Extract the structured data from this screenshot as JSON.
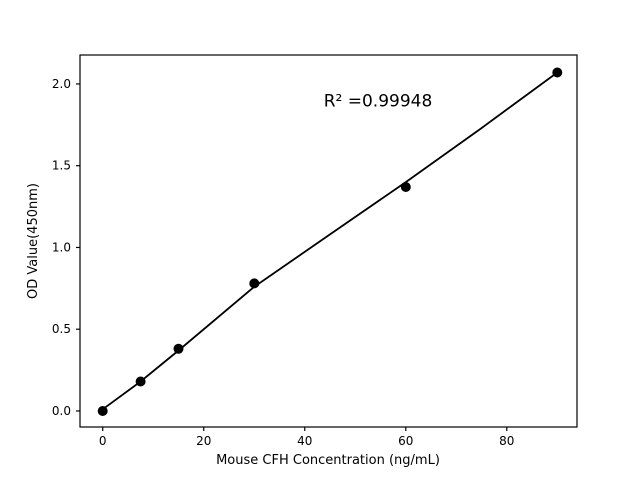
{
  "figure": {
    "background": "#ffffff",
    "frame_color": "#000000"
  },
  "chart_data": {
    "type": "scatter",
    "title": "",
    "xlabel": "Mouse CFH Concentration (ng/mL)",
    "ylabel": "OD Value(450nm)",
    "x": [
      0,
      7.5,
      15,
      30,
      60,
      90
    ],
    "y": [
      0.0,
      0.18,
      0.38,
      0.78,
      1.37,
      2.07
    ],
    "series": [
      {
        "name": "standard-curve-points",
        "points": [
          [
            0,
            0.0
          ],
          [
            7.5,
            0.18
          ],
          [
            15,
            0.38
          ],
          [
            30,
            0.78
          ],
          [
            60,
            1.37
          ],
          [
            90,
            2.07
          ]
        ]
      }
    ],
    "fit_line": [
      [
        0,
        0.01
      ],
      [
        7.5,
        0.18
      ],
      [
        15,
        0.37
      ],
      [
        30,
        0.76
      ],
      [
        45,
        1.08
      ],
      [
        60,
        1.4
      ],
      [
        75,
        1.73
      ],
      [
        90,
        2.07
      ]
    ],
    "annotation": {
      "text": "R² =0.99948",
      "x": 54.5,
      "y": 1.9
    },
    "xticks": [
      0,
      20,
      40,
      60,
      80
    ],
    "yticks": [
      0.0,
      0.5,
      1.0,
      1.5,
      2.0
    ],
    "xlim": [
      -4.5,
      93.9
    ],
    "ylim": [
      -0.098,
      2.177
    ],
    "grid": false,
    "legend": null,
    "marker_color": "#000000",
    "line_color": "#000000"
  }
}
